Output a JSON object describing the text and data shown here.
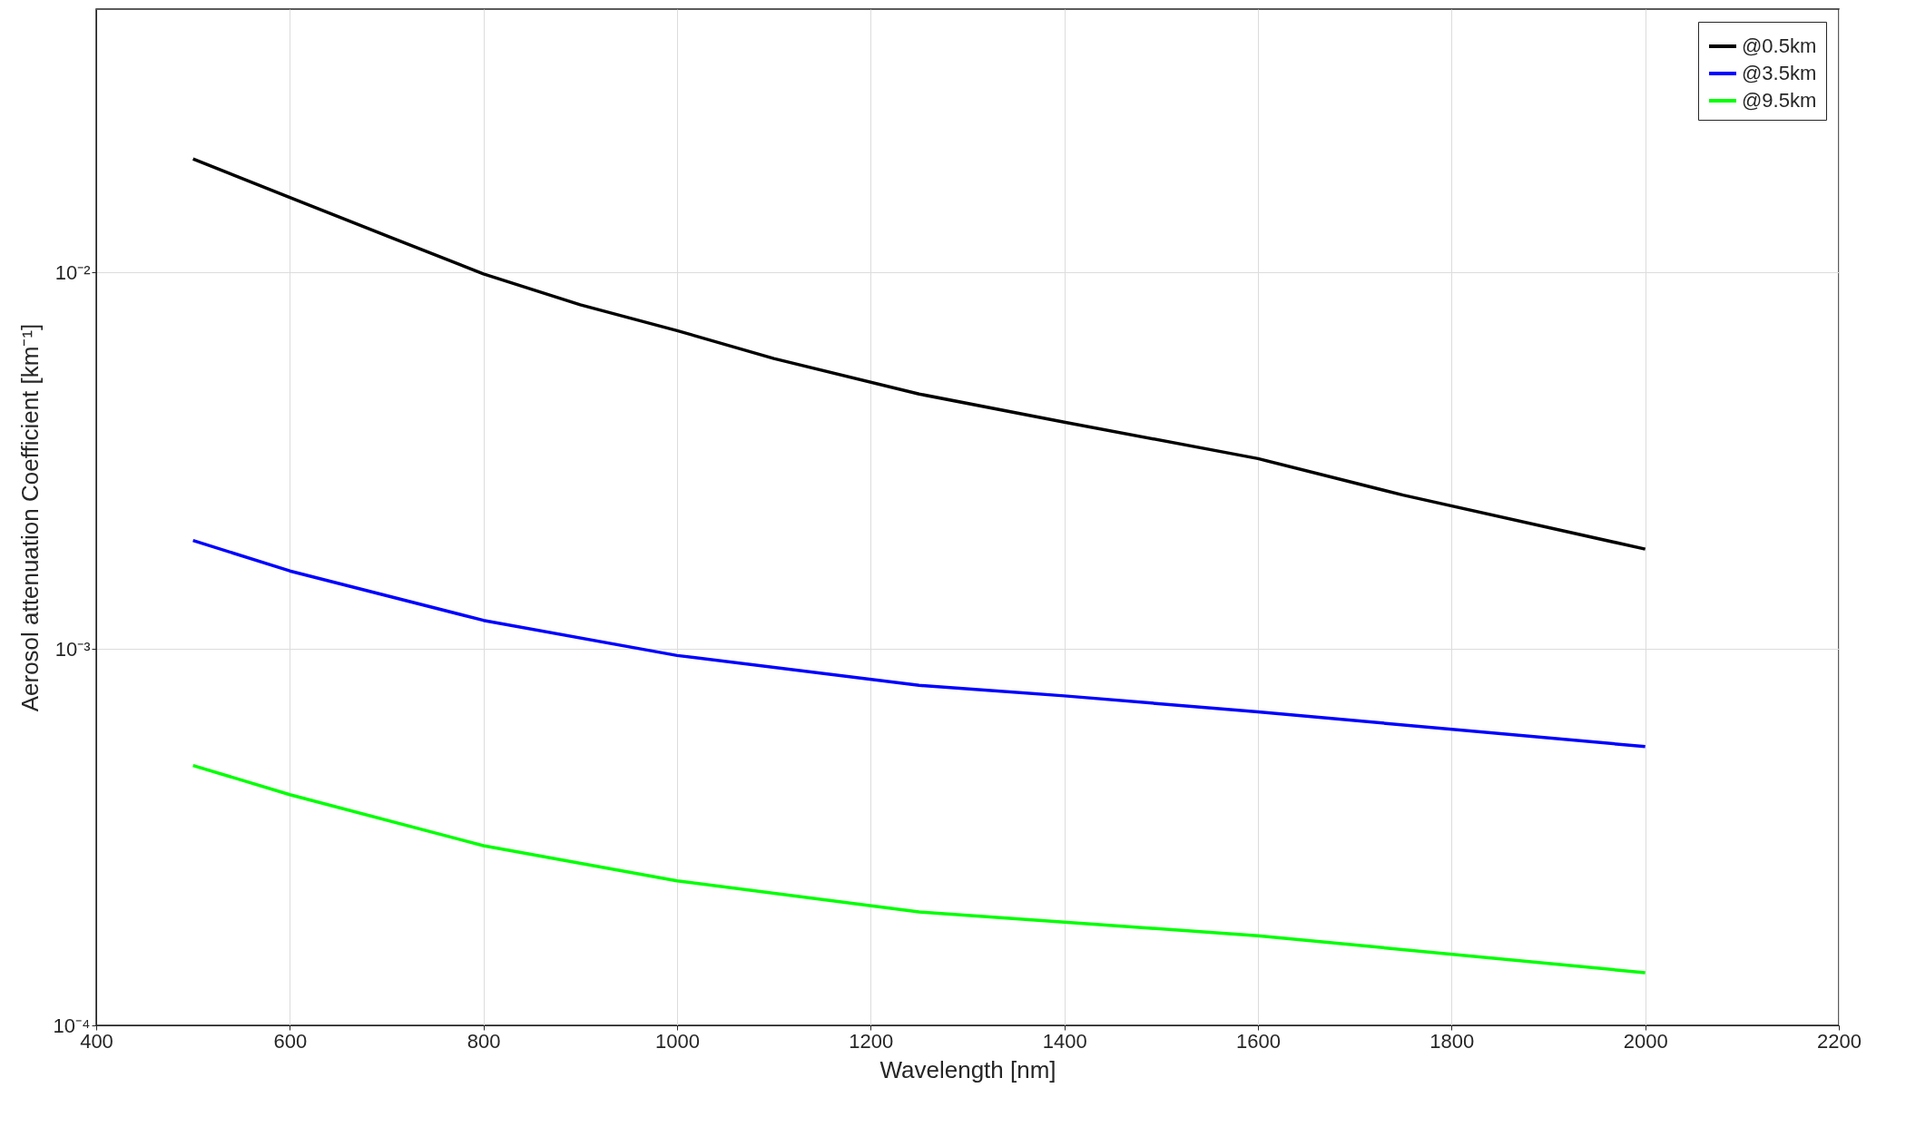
{
  "chart_data": {
    "type": "line",
    "xlabel": "Wavelength [nm]",
    "ylabel": "Aerosol attenuation Coefficient [km⁻¹]",
    "log": "y",
    "grid": true,
    "legend": "top right",
    "line_style": "solid",
    "marker": "none",
    "xlim": [
      400,
      2200
    ],
    "xticks": [
      400,
      600,
      800,
      1000,
      1200,
      1400,
      1600,
      1800,
      2000,
      2200
    ],
    "ylim": [
      0.0001,
      0.05
    ],
    "yticks": [
      {
        "value": 0.0001,
        "label": "10⁻⁴"
      },
      {
        "value": 0.001,
        "label": "10⁻³"
      },
      {
        "value": 0.01,
        "label": "10⁻²"
      }
    ],
    "series": [
      {
        "name": "@0.5km",
        "color": "#000000",
        "x": [
          500,
          600,
          700,
          800,
          900,
          1000,
          1100,
          1250,
          1400,
          1600,
          1750,
          2000
        ],
        "values": [
          0.02,
          0.0158,
          0.0125,
          0.0099,
          0.0082,
          0.007,
          0.0059,
          0.00475,
          0.004,
          0.0032,
          0.00256,
          0.00184
        ]
      },
      {
        "name": "@3.5km",
        "color": "#0000ff",
        "x": [
          500,
          600,
          800,
          1000,
          1250,
          1400,
          1600,
          2000
        ],
        "values": [
          0.00194,
          0.00161,
          0.00119,
          0.00096,
          0.0008,
          0.00075,
          0.00068,
          0.00055
        ]
      },
      {
        "name": "@9.5km",
        "color": "#00ff00",
        "x": [
          500,
          600,
          800,
          1000,
          1250,
          1400,
          1600,
          2000
        ],
        "values": [
          0.00049,
          0.00041,
          0.0003,
          0.000242,
          0.0002,
          0.000188,
          0.000173,
          0.000138
        ]
      }
    ]
  }
}
